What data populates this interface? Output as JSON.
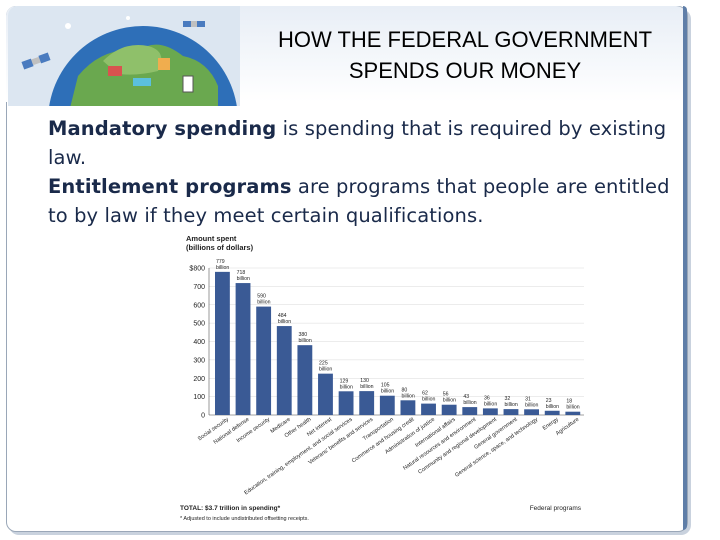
{
  "slide": {
    "title_line1": "HOW THE FEDERAL GOVERNMENT",
    "title_line2": "SPENDS OUR MONEY",
    "para1_bold": "Mandatory spending",
    "para1_rest": " is spending that is required by existing law.",
    "para2_bold": "Entitlement programs",
    "para2_rest": " are programs that people are entitled to by law if they meet certain qualifications."
  },
  "colors": {
    "bar": "#3a5a95",
    "axis_text": "#222222",
    "accent_border": "#5f7ea8"
  },
  "chart_data": {
    "type": "bar",
    "ylabel": "Amount spent (billions of dollars)",
    "ytick_labels": [
      "$800",
      "700",
      "600",
      "500",
      "400",
      "300",
      "200",
      "100",
      "0"
    ],
    "ytick_values": [
      800,
      700,
      600,
      500,
      400,
      300,
      200,
      100,
      0
    ],
    "ylim": [
      0,
      800
    ],
    "grid": true,
    "categories": [
      "Social security",
      "National defense",
      "Income security",
      "Medicare",
      "Other health",
      "Net interest",
      "Education, training, employment, and social services",
      "Veterans' benefits and services",
      "Transportation",
      "Commerce and housing credit",
      "Administration of justice",
      "International affairs",
      "Natural resources and environment",
      "Community and regional development",
      "General government",
      "General science, space, and technology",
      "Energy",
      "Agriculture"
    ],
    "values": [
      779,
      718,
      590,
      484,
      380,
      225,
      129,
      130,
      105,
      80,
      62,
      56,
      43,
      36,
      32,
      31,
      23,
      18
    ],
    "value_labels": [
      "779 billion",
      "718 billion",
      "590 billion",
      "484 billion",
      "380 billion",
      "225 billion",
      "129 billion",
      "130 billion",
      "105 billion",
      "80 billion",
      "62 billion",
      "56 billion",
      "43 billion",
      "36 billion",
      "32 billion",
      "31 billion",
      "23 billion",
      "18 billion"
    ],
    "footnote_total": "TOTAL: $3.7 trillion in spending*",
    "footnote_note": "* Adjusted to include undistributed offsetting receipts.",
    "source_label": "Federal programs"
  }
}
